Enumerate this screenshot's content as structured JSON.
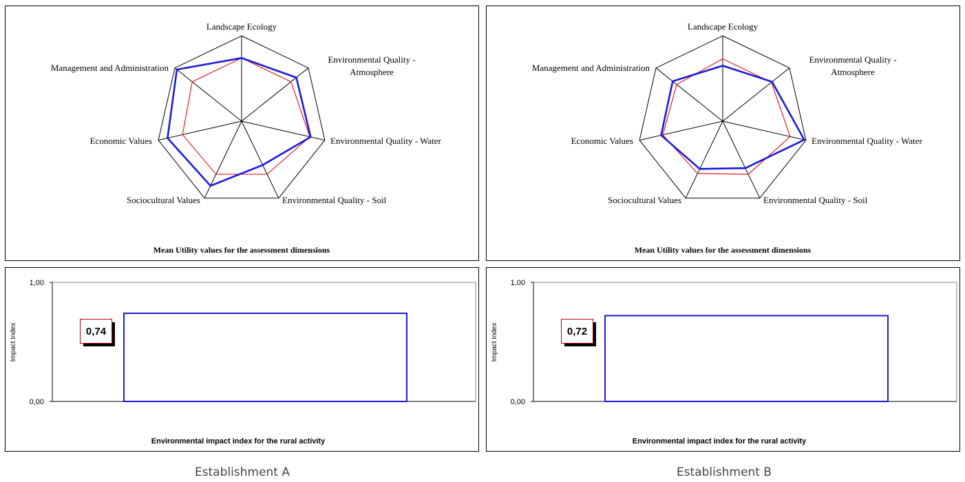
{
  "chart_data": [
    {
      "type": "radar",
      "panel": "Establishment A",
      "title": "Mean Utility values for the assessment dimensions",
      "axes": [
        "Landscape Ecology",
        "Environmental Quality - Atmosphere",
        "Environmental Quality - Water",
        "Environmental Quality - Soil",
        "Sociocultural Values",
        "Economic Values",
        "Management and Administration"
      ],
      "axis_label_lines": [
        [
          "Landscape Ecology"
        ],
        [
          "Environmental Quality -",
          "Atmosphere"
        ],
        [
          "Environmental Quality - Water"
        ],
        [
          "Environmental Quality - Soil"
        ],
        [
          "Sociocultural Values"
        ],
        [
          "Economic Values"
        ],
        [
          "Management and Administration"
        ]
      ],
      "rlim": [
        0,
        1
      ],
      "series": [
        {
          "color": "#1a1adc",
          "values": [
            0.74,
            0.82,
            0.83,
            0.57,
            0.84,
            0.89,
            0.97
          ]
        },
        {
          "color": "#e02020",
          "values": [
            0.74,
            0.74,
            0.82,
            0.69,
            0.69,
            0.71,
            0.74
          ]
        }
      ]
    },
    {
      "type": "radar",
      "panel": "Establishment B",
      "title": "Mean Utility values for the assessment dimensions",
      "axes": [
        "Landscape Ecology",
        "Environmental Quality - Atmosphere",
        "Environmental Quality - Water",
        "Environmental Quality - Soil",
        "Sociocultural Values",
        "Economic Values",
        "Management and Administration"
      ],
      "axis_label_lines": [
        [
          "Landscape Ecology"
        ],
        [
          "Environmental Quality -",
          "Atmosphere"
        ],
        [
          "Environmental Quality - Water"
        ],
        [
          "Environmental Quality - Soil"
        ],
        [
          "Sociocultural Values"
        ],
        [
          "Economic Values"
        ],
        [
          "Management and Administration"
        ]
      ],
      "rlim": [
        0,
        1
      ],
      "series": [
        {
          "color": "#1a1adc",
          "values": [
            0.65,
            0.74,
            0.98,
            0.61,
            0.62,
            0.74,
            0.75
          ]
        },
        {
          "color": "#e02020",
          "values": [
            0.73,
            0.73,
            0.81,
            0.69,
            0.68,
            0.72,
            0.69
          ]
        }
      ]
    },
    {
      "type": "bar",
      "panel": "Establishment A",
      "title": "Environmental impact index for the rural activity",
      "ylabel": "Impact index",
      "ylim": [
        0,
        1
      ],
      "ytick_labels": [
        "1,00",
        "0,00"
      ],
      "value": 0.74,
      "value_label": "0,74",
      "color": "#1a1adc"
    },
    {
      "type": "bar",
      "panel": "Establishment B",
      "title": "Environmental impact index for the rural activity",
      "ylabel": "Impact index",
      "ylim": [
        0,
        1
      ],
      "ytick_labels": [
        "1,00",
        "0,00"
      ],
      "value": 0.72,
      "value_label": "0,72",
      "color": "#1a1adc"
    }
  ],
  "captions": {
    "left": "Establishment A",
    "right": "Establishment B"
  }
}
